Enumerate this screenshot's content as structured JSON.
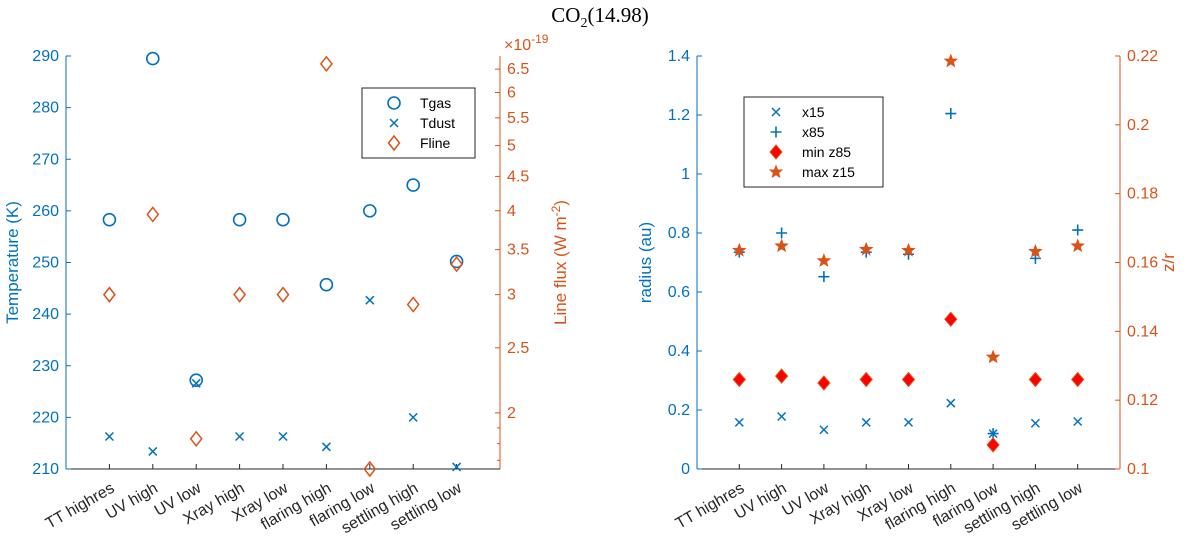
{
  "figure": {
    "title": "CO2(14.98)"
  },
  "colors": {
    "left_axis": "#0072BD",
    "right_axis": "#D95319",
    "series_blue": "#0072BD",
    "series_orange": "#D95319",
    "marker_red": "#FF0000",
    "bottom_axis": "#262626"
  },
  "chart_data": [
    {
      "type": "scatter",
      "categories": [
        "TT highres",
        "UV high",
        "UV low",
        "Xray high",
        "Xray low",
        "flaring high",
        "flaring low",
        "settling high",
        "settling low"
      ],
      "ylabel_left": "Temperature (K)",
      "ylabel_right": "Line flux (W m-2)",
      "ylim_left": [
        210,
        290
      ],
      "yticks_left": [
        210,
        220,
        230,
        240,
        250,
        260,
        270,
        280,
        290
      ],
      "ylim_right": [
        1.65e-19,
        6.8e-19
      ],
      "yticks_right": [
        2,
        2.5,
        3,
        3.5,
        4,
        4.5,
        5,
        5.5,
        6,
        6.5
      ],
      "right_multiplier": "×10",
      "right_exponent": "-19",
      "grid": false,
      "legend_position": "top-right",
      "series": [
        {
          "name": "Tgas",
          "axis": "left",
          "marker": "circle",
          "color": "#0072BD",
          "values": [
            258.3,
            289.5,
            227.2,
            258.3,
            258.3,
            245.7,
            260.0,
            265.0,
            250.2
          ]
        },
        {
          "name": "Tdust",
          "axis": "left",
          "marker": "x",
          "color": "#0072BD",
          "values": [
            216.3,
            213.4,
            226.6,
            216.3,
            216.3,
            214.3,
            242.7,
            220.0,
            210.4
          ]
        },
        {
          "name": "Fline",
          "axis": "right",
          "marker": "diamond",
          "color": "#D95319",
          "values": [
            3e-19,
            3.95e-19,
            1.83e-19,
            3e-19,
            3e-19,
            6.62e-19,
            1.65e-19,
            2.9e-19,
            3.33e-19
          ]
        }
      ]
    },
    {
      "type": "scatter",
      "categories": [
        "TT highres",
        "UV high",
        "UV low",
        "Xray high",
        "Xray low",
        "flaring high",
        "flaring low",
        "settling high",
        "settling low"
      ],
      "ylabel_left": "radius (au)",
      "ylabel_right": "z/r",
      "ylim_left": [
        0,
        1.4
      ],
      "yticks_left": [
        0,
        0.2,
        0.4,
        0.6,
        0.8,
        1,
        1.2,
        1.4
      ],
      "ylim_right": [
        0.1,
        0.22
      ],
      "yticks_right": [
        0.1,
        0.12,
        0.14,
        0.16,
        0.18,
        0.2,
        0.22
      ],
      "grid": false,
      "legend_position": "top-left",
      "series": [
        {
          "name": "x15",
          "axis": "left",
          "marker": "x",
          "color": "#0072BD",
          "values": [
            0.158,
            0.178,
            0.133,
            0.158,
            0.158,
            0.223,
            0.12,
            0.155,
            0.161
          ]
        },
        {
          "name": "x85",
          "axis": "left",
          "marker": "plus",
          "color": "#0072BD",
          "values": [
            0.735,
            0.8,
            0.652,
            0.735,
            0.728,
            1.205,
            0.12,
            0.714,
            0.81
          ]
        },
        {
          "name": "min z85",
          "axis": "right",
          "marker": "diamond-filled",
          "color": "#FF0000",
          "values": [
            0.126,
            0.127,
            0.125,
            0.126,
            0.126,
            0.1435,
            0.107,
            0.126,
            0.126
          ]
        },
        {
          "name": "max z15",
          "axis": "right",
          "marker": "star",
          "color": "#D95319",
          "values": [
            0.1635,
            0.1648,
            0.1605,
            0.1638,
            0.1635,
            0.2185,
            0.1325,
            0.1632,
            0.1648
          ]
        }
      ]
    }
  ]
}
